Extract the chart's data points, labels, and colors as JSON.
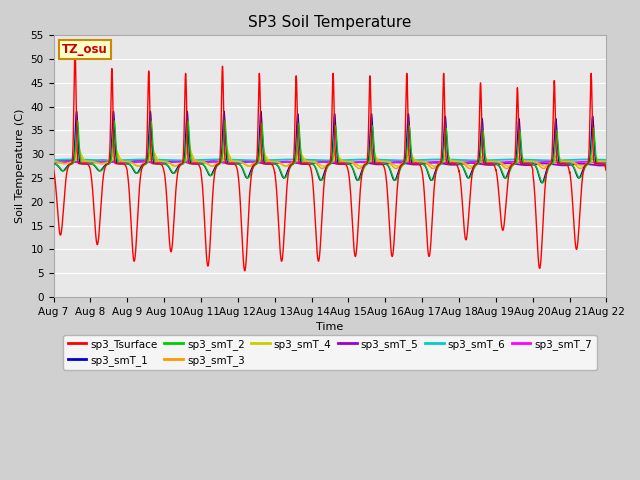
{
  "title": "SP3 Soil Temperature",
  "xlabel": "Time",
  "ylabel": "Soil Temperature (C)",
  "ylim": [
    0,
    55
  ],
  "yticks": [
    0,
    5,
    10,
    15,
    20,
    25,
    30,
    35,
    40,
    45,
    50,
    55
  ],
  "n_days": 15,
  "tz_label": "TZ_osu",
  "fig_bg_color": "#d0d0d0",
  "plot_bg_color": "#e8e8e8",
  "series_colors": {
    "sp3_Tsurface": "#ff0000",
    "sp3_smT_1": "#0000cc",
    "sp3_smT_2": "#00cc00",
    "sp3_smT_3": "#ff9900",
    "sp3_smT_4": "#cccc00",
    "sp3_smT_5": "#9900cc",
    "sp3_smT_6": "#00cccc",
    "sp3_smT_7": "#ff00ff"
  },
  "x_tick_labels": [
    "Aug 7",
    "Aug 8",
    "Aug 9",
    "Aug 10",
    "Aug 11",
    "Aug 12",
    "Aug 13",
    "Aug 14",
    "Aug 15",
    "Aug 16",
    "Aug 17",
    "Aug 18",
    "Aug 19",
    "Aug 20",
    "Aug 21",
    "Aug 22"
  ],
  "surface_peaks": [
    52,
    48,
    47.5,
    47,
    48.5,
    47,
    46.5,
    47,
    46.5,
    47,
    47,
    45,
    44,
    45.5,
    47
  ],
  "surface_troughs": [
    13,
    11,
    7.5,
    9.5,
    6.5,
    5.5,
    7.5,
    7.5,
    8.5,
    8.5,
    8.5,
    12,
    14,
    6,
    10
  ],
  "smT1_peaks": [
    39,
    39,
    39,
    39,
    39,
    39,
    38.5,
    38.5,
    38.5,
    38.5,
    38,
    37.5,
    37.5,
    37.5,
    38
  ],
  "smT2_peaks": [
    37,
    37,
    37,
    37,
    37,
    36.5,
    36.5,
    36,
    36,
    36,
    35.5,
    35,
    35,
    35,
    35.5
  ],
  "smT3_peaks": [
    32,
    32,
    32,
    32.5,
    32.5,
    32,
    31.5,
    31,
    31,
    31,
    30.5,
    30,
    30,
    30,
    30
  ],
  "smT4_peaks": [
    30.5,
    30.5,
    30.5,
    30.5,
    30.5,
    30,
    30,
    29.5,
    29.5,
    29.5,
    29,
    28.5,
    28.5,
    28.5,
    28.5
  ],
  "smT1_troughs": [
    26.5,
    26.5,
    26,
    26,
    25.5,
    25,
    25,
    24.5,
    24.5,
    24.5,
    24.5,
    25,
    25,
    24,
    25
  ],
  "smT2_troughs": [
    26.5,
    26.5,
    26,
    26,
    25.5,
    25,
    25,
    24.5,
    24.5,
    24.5,
    24.5,
    25,
    25,
    24,
    25
  ],
  "smT3_troughs": [
    28,
    28,
    27.5,
    27.5,
    27.5,
    27.5,
    27.5,
    27,
    27,
    27,
    27,
    27,
    27,
    27,
    27
  ],
  "smT4_troughs": [
    28,
    28,
    27.5,
    27.5,
    27.5,
    27.5,
    27.5,
    27.5,
    27.5,
    27.5,
    27.5,
    27.5,
    27.5,
    27.5,
    27.5
  ]
}
